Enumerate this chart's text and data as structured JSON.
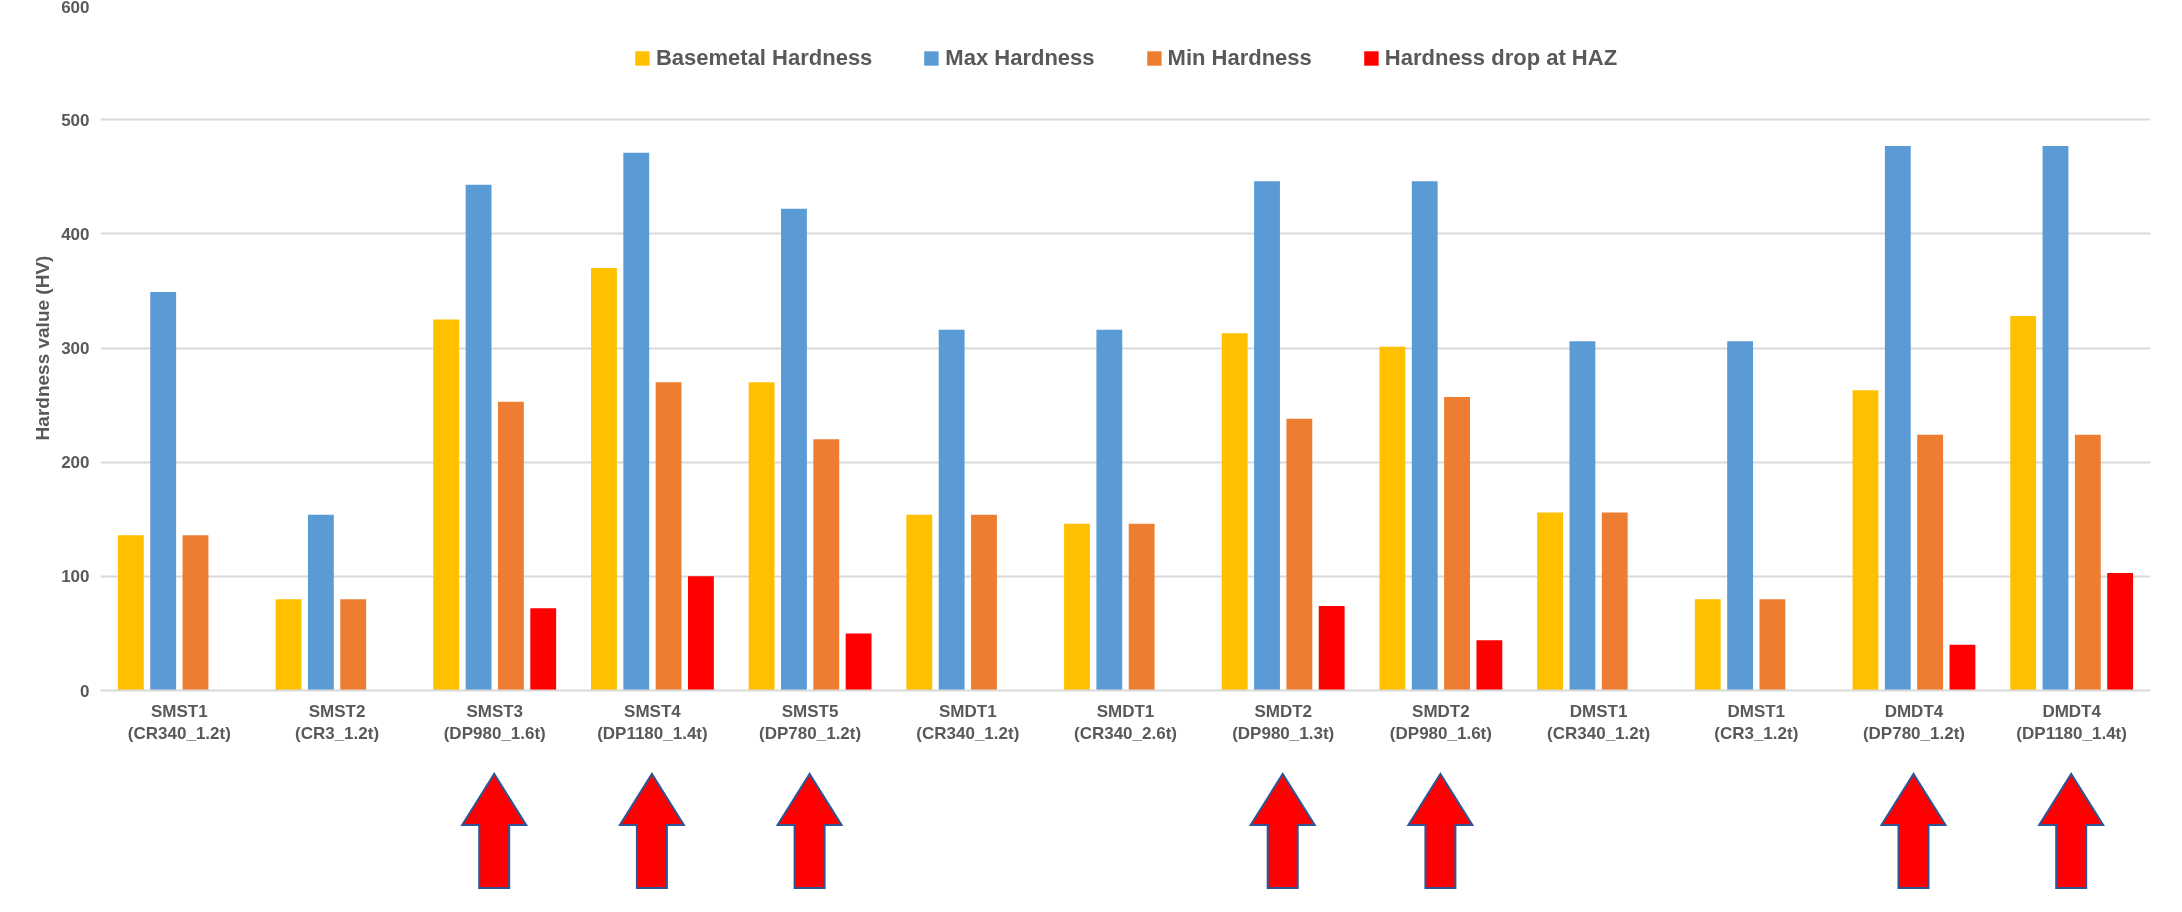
{
  "chart_data": {
    "type": "bar",
    "ylabel": "Hardness value (HV)",
    "categories": [
      "SMST1\n(CR340_1.2t)",
      "SMST2\n(CR3_1.2t)",
      "SMST3\n(DP980_1.6t)",
      "SMST4\n(DP1180_1.4t)",
      "SMST5\n(DP780_1.2t)",
      "SMDT1\n(CR340_1.2t)",
      "SMDT1\n(CR340_2.6t)",
      "SMDT2\n(DP980_1.3t)",
      "SMDT2\n(DP980_1.6t)",
      "DMST1\n(CR340_1.2t)",
      "DMST1\n(CR3_1.2t)",
      "DMDT4\n(DP780_1.2t)",
      "DMDT4\n(DP1180_1.4t)"
    ],
    "series": [
      {
        "name": "Basemetal Hardness",
        "color": "#ffc000",
        "values": [
          136,
          80,
          325,
          370,
          270,
          154,
          146,
          313,
          301,
          156,
          80,
          263,
          328
        ]
      },
      {
        "name": "Max Hardness",
        "color": "#5b9bd5",
        "values": [
          349,
          154,
          443,
          471,
          422,
          316,
          316,
          446,
          446,
          306,
          306,
          477,
          477
        ]
      },
      {
        "name": "Min Hardness",
        "color": "#ed7d31",
        "values": [
          136,
          80,
          253,
          270,
          220,
          154,
          146,
          238,
          257,
          156,
          80,
          224,
          224
        ]
      },
      {
        "name": "Hardness drop at HAZ",
        "color": "#ff0000",
        "values": [
          null,
          null,
          72,
          100,
          50,
          null,
          null,
          74,
          44,
          null,
          null,
          40,
          103
        ]
      }
    ],
    "ylim": [
      0,
      600
    ],
    "yticks": [
      0,
      100,
      200,
      300,
      400,
      500,
      600
    ],
    "grid": "y",
    "legend": "top"
  }
}
